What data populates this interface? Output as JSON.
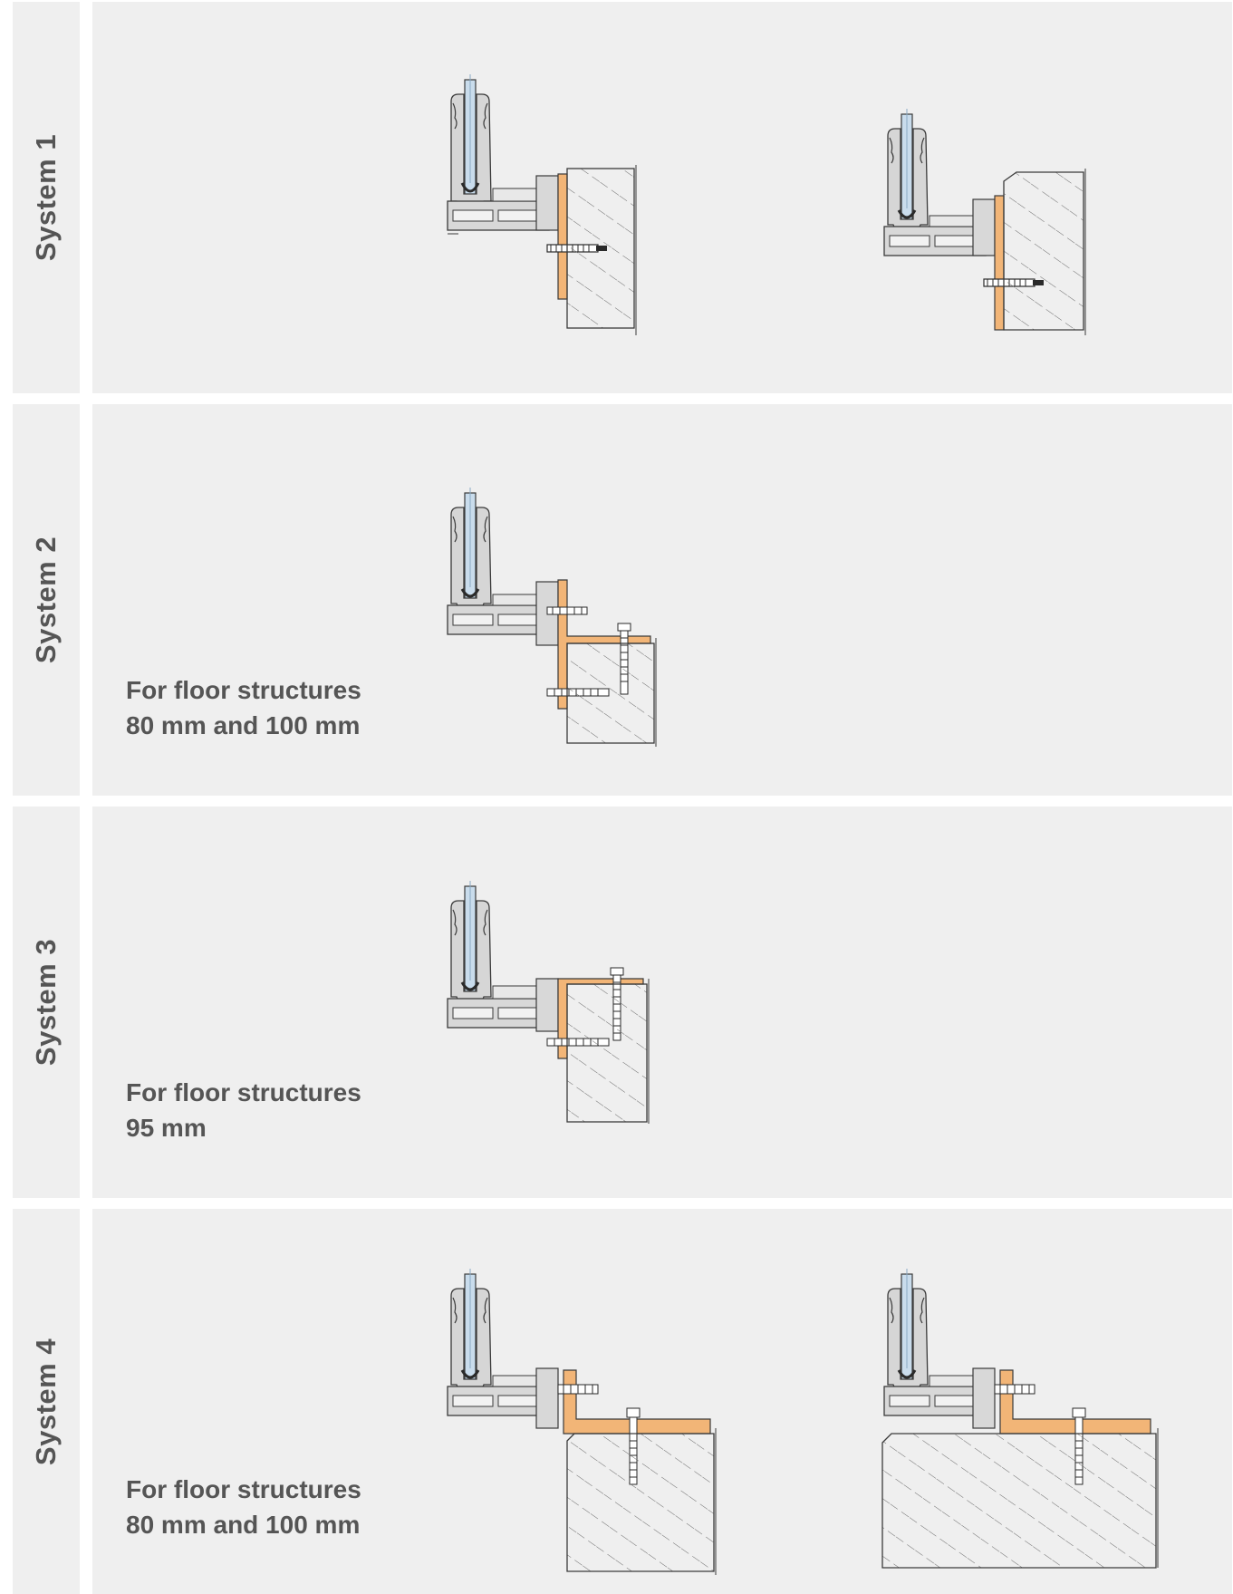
{
  "systems": [
    {
      "label": "System 1",
      "note_line1": "",
      "note_line2": ""
    },
    {
      "label": "System 2",
      "note_line1": "For floor structures",
      "note_line2": "80 mm and 100 mm"
    },
    {
      "label": "System 3",
      "note_line1": "For floor structures",
      "note_line2": "95 mm"
    },
    {
      "label": "System 4",
      "note_line1": "For floor structures",
      "note_line2": "80 mm and 100 mm"
    }
  ],
  "colors": {
    "panel_background": "#efefef",
    "text": "#555555",
    "bracket_orange": "#f2b577",
    "glass_blue": "#c9dcec",
    "line": "#3a3a3a"
  },
  "icons": [
    "glass-balustrade-section-drawing",
    "fixing-bracket",
    "anchor-bolt",
    "concrete-slab"
  ]
}
